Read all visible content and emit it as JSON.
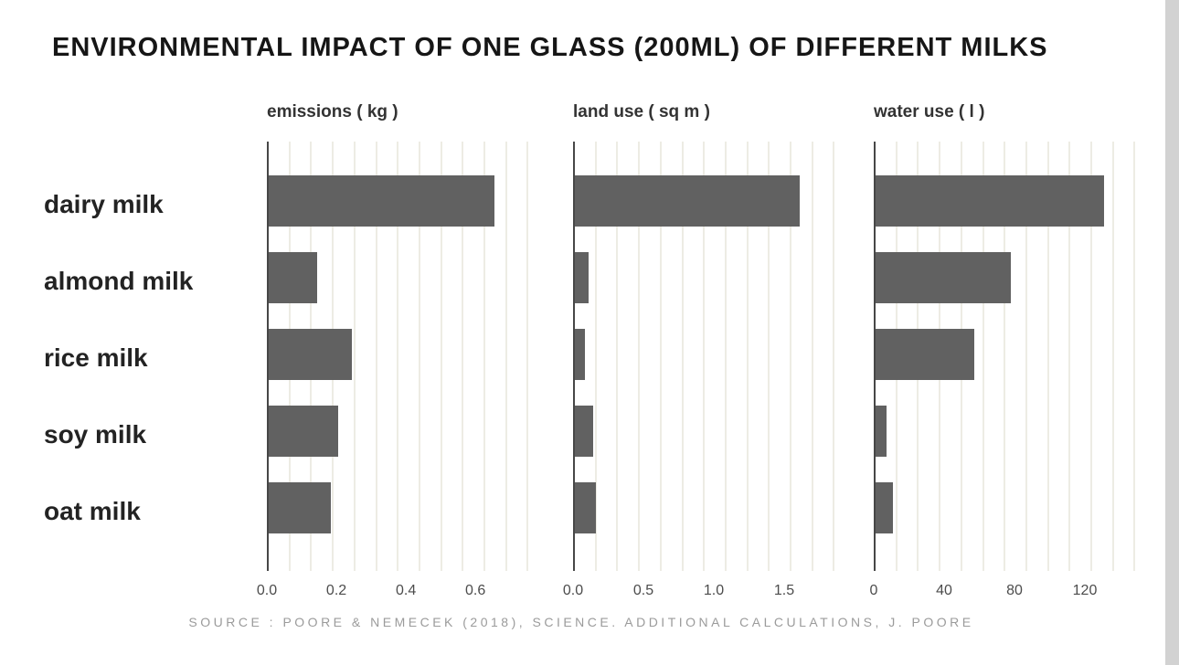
{
  "chart_data": {
    "type": "bar",
    "orientation": "horizontal",
    "title": "ENVIRONMENTAL IMPACT OF ONE GLASS (200ML) OF DIFFERENT MILKS",
    "categories": [
      "dairy milk",
      "almond milk",
      "rice milk",
      "soy milk",
      "oat milk"
    ],
    "panels": [
      {
        "label": "emissions ( kg )",
        "values": [
          0.65,
          0.14,
          0.24,
          0.2,
          0.18
        ],
        "xmax": 0.81,
        "ticks": [
          {
            "value": 0,
            "label": "0.0"
          },
          {
            "value": 0.2,
            "label": "0.2"
          },
          {
            "value": 0.4,
            "label": "0.4"
          },
          {
            "value": 0.6,
            "label": "0.6"
          }
        ]
      },
      {
        "label": "land use ( sq m )",
        "values": [
          1.6,
          0.1,
          0.07,
          0.13,
          0.15
        ],
        "xmax": 2.0,
        "ticks": [
          {
            "value": 0,
            "label": "0.0"
          },
          {
            "value": 0.5,
            "label": "0.5"
          },
          {
            "value": 1.0,
            "label": "1.0"
          },
          {
            "value": 1.5,
            "label": "1.5"
          }
        ]
      },
      {
        "label": "water use ( l )",
        "values": [
          130,
          77,
          56,
          6,
          10
        ],
        "xmax": 160,
        "ticks": [
          {
            "value": 0,
            "label": "0"
          },
          {
            "value": 40,
            "label": "40"
          },
          {
            "value": 80,
            "label": "80"
          },
          {
            "value": 120,
            "label": "120"
          }
        ]
      }
    ],
    "source": "SOURCE : POORE & NEMECEK (2018), SCIENCE. ADDITIONAL CALCULATIONS, J. POORE",
    "bar_color": "#616161",
    "grid": true,
    "legend": "none"
  }
}
